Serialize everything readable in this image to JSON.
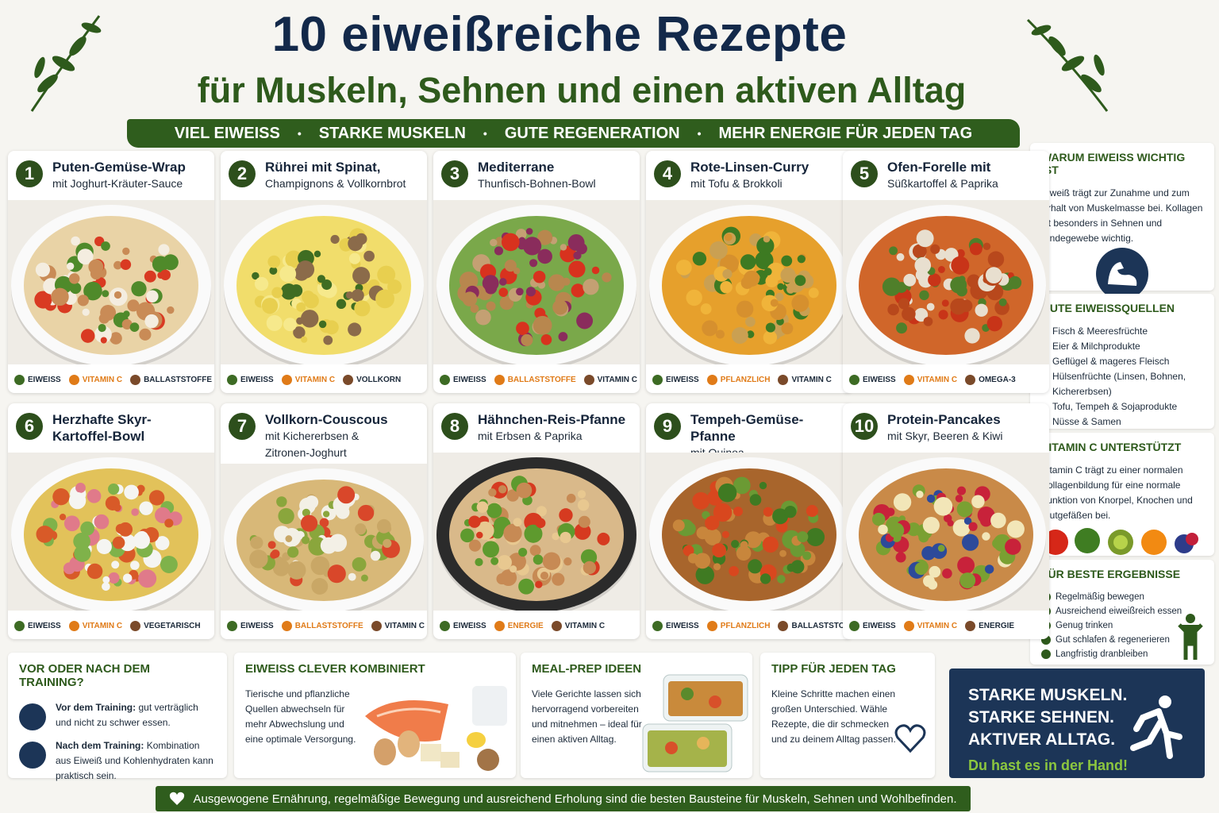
{
  "header": {
    "title": "10 eiweißreiche Rezepte",
    "subtitle": "für Muskeln, Sehnen und einen aktiven Alltag",
    "banner": [
      "VIEL EIWEISS",
      "STARKE MUSKELN",
      "GUTE REGENERATION",
      "MEHR ENERGIE FÜR JEDEN TAG"
    ]
  },
  "recipes": [
    {
      "number": "1",
      "title_lines": [
        "Puten-Gemüse-Wrap"
      ],
      "subtitle_lines": [
        "mit Joghurt-Kräuter-Sauce"
      ],
      "tags": [
        "EIWEISS",
        "VITAMIN C",
        "BALLASTSTOFFE"
      ]
    },
    {
      "number": "2",
      "title_lines": [
        "Rührei mit Spinat,"
      ],
      "subtitle_lines": [
        "Champignons & Vollkornbrot"
      ],
      "tags": [
        "EIWEISS",
        "VITAMIN C",
        "VOLLKORN"
      ]
    },
    {
      "number": "3",
      "title_lines": [
        "Mediterrane"
      ],
      "subtitle_lines": [
        "Thunfisch-Bohnen-Bowl"
      ],
      "tags": [
        "EIWEISS",
        "BALLASTSTOFFE",
        "VITAMIN C"
      ]
    },
    {
      "number": "4",
      "title_lines": [
        "Rote-Linsen-Curry"
      ],
      "subtitle_lines": [
        "mit Tofu & Brokkoli"
      ],
      "tags": [
        "EIWEISS",
        "PFLANZLICH",
        "VITAMIN C"
      ]
    },
    {
      "number": "5",
      "title_lines": [
        "Ofen-Forelle mit"
      ],
      "subtitle_lines": [
        "Süßkartoffel & Paprika"
      ],
      "tags": [
        "EIWEISS",
        "VITAMIN C",
        "OMEGA-3"
      ]
    },
    {
      "number": "6",
      "title_lines": [
        "Herzhafte Skyr-",
        "Kartoffel-Bowl"
      ],
      "subtitle_lines": [],
      "tags": [
        "EIWEISS",
        "VITAMIN C",
        "VEGETARISCH"
      ]
    },
    {
      "number": "7",
      "title_lines": [
        "Vollkorn-Couscous"
      ],
      "subtitle_lines": [
        "mit Kichererbsen &",
        "Zitronen-Joghurt"
      ],
      "tags": [
        "EIWEISS",
        "BALLASTSTOFFE",
        "VITAMIN C"
      ]
    },
    {
      "number": "8",
      "title_lines": [
        "Hähnchen-Reis-Pfanne"
      ],
      "subtitle_lines": [
        "mit Erbsen & Paprika"
      ],
      "tags": [
        "EIWEISS",
        "ENERGIE",
        "VITAMIN C"
      ]
    },
    {
      "number": "9",
      "title_lines": [
        "Tempeh-Gemüse-Pfanne"
      ],
      "subtitle_lines": [
        "mit Quinoa"
      ],
      "tags": [
        "EIWEISS",
        "PFLANZLICH",
        "BALLASTSTOFFE"
      ]
    },
    {
      "number": "10",
      "title_lines": [
        "Protein-Pancakes"
      ],
      "subtitle_lines": [
        "mit Skyr, Beeren & Kiwi"
      ],
      "tags": [
        "EIWEISS",
        "VITAMIN C",
        "ENERGIE"
      ]
    }
  ],
  "sidebar": {
    "why": {
      "title": "WARUM EIWEISS WICHTIG IST",
      "text": "Eiweiß trägt zur Zunahme und zum Erhalt von Muskelmasse bei. Kollagen ist besonders in Sehnen und Bindegewebe wichtig."
    },
    "sources": {
      "title": "GUTE EIWEISSQUELLEN",
      "items": [
        "Fisch & Meeresfrüchte",
        "Eier & Milchprodukte",
        "Geflügel & mageres Fleisch",
        "Hülsenfrüchte (Linsen, Bohnen, Kichererbsen)",
        "Tofu, Tempeh & Sojaprodukte",
        "Nüsse & Samen"
      ]
    },
    "vitamin_c": {
      "title": "VITAMIN C UNTERSTÜTZT",
      "text": "Vitamin C trägt zu einer normalen Kollagenbildung für eine normale Funktion von Knorpel, Knochen und Blutgefäßen bei."
    },
    "results": {
      "title": "FÜR BESTE ERGEBNISSE",
      "items": [
        "Regelmäßig bewegen",
        "Ausreichend eiweißreich essen",
        "Genug trinken",
        "Gut schlafen & regenerieren",
        "Langfristig dranbleiben"
      ]
    }
  },
  "bottom": {
    "training": {
      "title": "VOR ODER NACH DEM TRAINING?",
      "items": [
        {
          "label": "Vor dem Training:",
          "text": "gut verträglich und nicht zu schwer essen."
        },
        {
          "label": "Nach dem Training:",
          "text": "Kombination aus Eiweiß und Kohlenhydraten kann praktisch sein."
        }
      ]
    },
    "combine": {
      "title": "EIWEISS CLEVER KOMBINIERT",
      "text": "Tierische und pflanzliche Quellen abwechseln für mehr Abwechslung und eine optimale Versorgung."
    },
    "mealprep": {
      "title": "MEAL-PREP IDEEN",
      "text": "Viele Gerichte lassen sich hervorragend vorbereiten und mitnehmen – ideal für einen aktiven Alltag."
    },
    "tip": {
      "title": "TIPP FÜR JEDEN TAG",
      "text": "Kleine Schritte machen einen großen Unterschied. Wähle Rezepte, die dir schmecken und zu deinem Alltag passen."
    },
    "motivation": {
      "lines": [
        "STARKE MUSKELN.",
        "STARKE SEHNEN.",
        "AKTIVER ALLTAG."
      ],
      "tagline": "Du hast es in der Hand!"
    }
  },
  "footer": "Ausgewogene Ernährung, regelmäßige Bewegung und ausreichend Erholung sind die besten Bausteine für Muskeln, Sehnen und Wohlbefinden."
}
